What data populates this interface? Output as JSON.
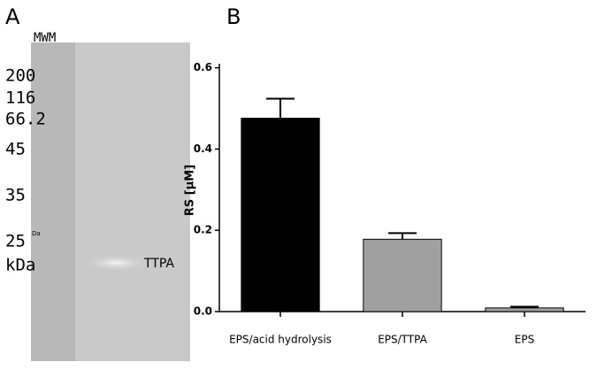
{
  "panel_a": {
    "label": "A",
    "lane_label": "MWM",
    "markers": [
      "200",
      "116",
      "66.2",
      "45",
      "35",
      "25",
      "kDa"
    ],
    "note": "Da",
    "band_label": "TTPA"
  },
  "chart_data": {
    "type": "bar",
    "panel_label": "B",
    "ylabel": "RS [μM]",
    "categories": [
      "EPS/acid hydrolysis",
      "EPS/TTPA",
      "EPS"
    ],
    "values": [
      0.476,
      0.178,
      0.009
    ],
    "errors": [
      0.048,
      0.015,
      0.003
    ],
    "colors": [
      "#000000",
      "#a0a0a0",
      "#a0a0a0"
    ],
    "ylim": [
      0,
      0.61
    ],
    "yticks": [
      {
        "value": 0,
        "label": "0.0"
      },
      0.2,
      0.4,
      0.6
    ]
  }
}
